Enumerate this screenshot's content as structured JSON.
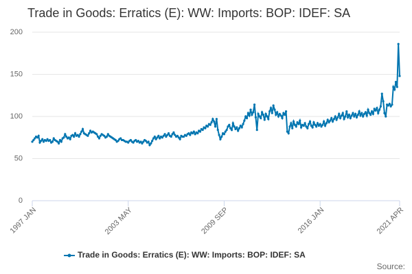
{
  "chart_data": {
    "type": "line",
    "title": "Trade in Goods: Erratics (E): WW: Imports: BOP: IDEF: SA",
    "categories": [
      "1997 JAN",
      null,
      null,
      null,
      null,
      null,
      null,
      null,
      null,
      null,
      null,
      null,
      null,
      null,
      null,
      null,
      null,
      null,
      null,
      null,
      null,
      null,
      null,
      null,
      null,
      null,
      null,
      null,
      null,
      null,
      null,
      null,
      null,
      null,
      null,
      null,
      null,
      null,
      null,
      null,
      null,
      null,
      null,
      null,
      null,
      null,
      null,
      null,
      null,
      null,
      null,
      null,
      null,
      null,
      null,
      null,
      null,
      null,
      null,
      null,
      null,
      null,
      null,
      null,
      null,
      null,
      null,
      null,
      null,
      null,
      null,
      null,
      null,
      null,
      null,
      null,
      "2003 MAY",
      null,
      null,
      null,
      null,
      null,
      null,
      null,
      null,
      null,
      null,
      null,
      null,
      null,
      null,
      null,
      null,
      null,
      null,
      null,
      null,
      null,
      null,
      null,
      null,
      null,
      null,
      null,
      null,
      null,
      null,
      null,
      null,
      null,
      null,
      null,
      null,
      null,
      null,
      null,
      null,
      null,
      null,
      null,
      null,
      null,
      null,
      null,
      null,
      null,
      null,
      null,
      null,
      null,
      null,
      null,
      null,
      null,
      null,
      null,
      null,
      null,
      null,
      null,
      null,
      null,
      null,
      null,
      null,
      null,
      null,
      null,
      null,
      null,
      null,
      null,
      "2009 SEP",
      null,
      null,
      null,
      null,
      null,
      null,
      null,
      null,
      null,
      null,
      null,
      null,
      null,
      null,
      null,
      null,
      null,
      null,
      null,
      null,
      null,
      null,
      null,
      null,
      null,
      null,
      null,
      null,
      null,
      null,
      null,
      null,
      null,
      null,
      null,
      null,
      null,
      null,
      null,
      null,
      null,
      null,
      null,
      null,
      null,
      null,
      null,
      null,
      null,
      null,
      null,
      null,
      null,
      null,
      null,
      null,
      null,
      null,
      null,
      null,
      null,
      null,
      null,
      null,
      null,
      null,
      null,
      null,
      null,
      null,
      null,
      null,
      null,
      null,
      null,
      "2016 JAN",
      null,
      null,
      null,
      null,
      null,
      null,
      null,
      null,
      null,
      null,
      null,
      null,
      null,
      null,
      null,
      null,
      null,
      null,
      null,
      null,
      null,
      null,
      null,
      null,
      null,
      null,
      null,
      null,
      null,
      null,
      null,
      null,
      null,
      null,
      null,
      null,
      null,
      null,
      null,
      null,
      null,
      null,
      null,
      null,
      null,
      null,
      null,
      null,
      null,
      null,
      null,
      null,
      null,
      null,
      null,
      null,
      null,
      null,
      null,
      null,
      null,
      null,
      "2021 APR"
    ],
    "series": [
      {
        "name": "Trade in Goods: Erratics (E): WW: Imports: BOP: IDEF: SA",
        "color": "#0075b0",
        "values": [
          70,
          72,
          74,
          76,
          75,
          77,
          69,
          71,
          73,
          70,
          72,
          71,
          73,
          71,
          72,
          69,
          70,
          74,
          72,
          71,
          70,
          68,
          72,
          70,
          74,
          75,
          79,
          76,
          74,
          75,
          73,
          77,
          78,
          76,
          80,
          77,
          78,
          76,
          79,
          82,
          85,
          80,
          79,
          78,
          77,
          80,
          83,
          81,
          82,
          81,
          80,
          79,
          76,
          74,
          77,
          79,
          78,
          77,
          75,
          76,
          79,
          77,
          76,
          75,
          74,
          73,
          72,
          70,
          71,
          73,
          74,
          72,
          72,
          71,
          70,
          70,
          69,
          71,
          72,
          70,
          69,
          71,
          72,
          70,
          71,
          69,
          70,
          68,
          70,
          72,
          71,
          69,
          70,
          66,
          68,
          71,
          74,
          76,
          73,
          75,
          77,
          74,
          76,
          75,
          77,
          79,
          76,
          78,
          80,
          77,
          76,
          79,
          81,
          78,
          76,
          77,
          75,
          73,
          77,
          76,
          76,
          78,
          77,
          79,
          80,
          78,
          81,
          80,
          82,
          79,
          81,
          80,
          83,
          82,
          85,
          84,
          87,
          86,
          89,
          88,
          91,
          90,
          93,
          97,
          94,
          88,
          97,
          84,
          78,
          73,
          76,
          80,
          79,
          82,
          84,
          88,
          90,
          86,
          84,
          92,
          88,
          85,
          87,
          83,
          86,
          89,
          87,
          91,
          95,
          100,
          98,
          104,
          101,
          108,
          102,
          105,
          114,
          99,
          84,
          103,
          100,
          98,
          105,
          102,
          96,
          103,
          100,
          97,
          106,
          110,
          104,
          113,
          108,
          102,
          105,
          100,
          103,
          101,
          98,
          104,
          102,
          106,
          82,
          80,
          88,
          92,
          86,
          94,
          90,
          88,
          93,
          91,
          95,
          87,
          90,
          89,
          92,
          88,
          86,
          91,
          94,
          89,
          87,
          93,
          90,
          88,
          92,
          89,
          91,
          88,
          90,
          94,
          89,
          92,
          96,
          93,
          95,
          98,
          94,
          97,
          100,
          96,
          99,
          103,
          98,
          101,
          104,
          97,
          100,
          106,
          99,
          102,
          98,
          101,
          104,
          100,
          103,
          99,
          102,
          106,
          101,
          104,
          100,
          103,
          105,
          101,
          108,
          104,
          102,
          106,
          103,
          109,
          107,
          110,
          104,
          108,
          112,
          127,
          118,
          104,
          100,
          114,
          113,
          115,
          112,
          114,
          135,
          132,
          141,
          135,
          186,
          148
        ]
      }
    ],
    "ylim": [
      0,
      200
    ],
    "yticks": [
      0,
      50,
      100,
      150,
      200
    ],
    "grid": true,
    "source_label": "Source:"
  }
}
